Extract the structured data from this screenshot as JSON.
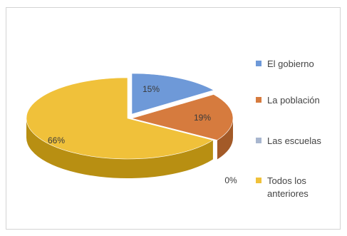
{
  "chart_data": {
    "type": "pie",
    "style": "3d-exploded-oval",
    "legend_position": "right",
    "categories": [
      "El gobierno",
      "La población",
      "Las escuelas",
      "Todos los anteriores"
    ],
    "values": [
      15,
      19,
      0,
      66
    ],
    "value_labels": [
      "15%",
      "19%",
      "0%",
      "66%"
    ],
    "legend_lines": [
      [
        "El gobierno"
      ],
      [
        "La población"
      ],
      [
        "Las escuelas"
      ],
      [
        "Todos los",
        "anteriores"
      ]
    ],
    "colors": {
      "top": [
        "#6e99d8",
        "#d67b3e",
        "#a8b6cf",
        "#f0c13a"
      ],
      "side": [
        "#4a6fa5",
        "#a35a28",
        "#7f8ea6",
        "#b88f12"
      ]
    }
  }
}
